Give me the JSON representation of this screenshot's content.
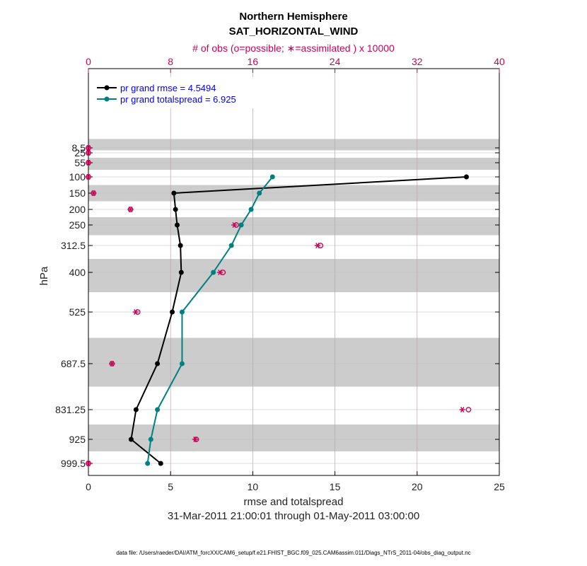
{
  "chart_data": {
    "type": "line",
    "title": "Northern Hemisphere",
    "subtitle": "SAT_HORIZONTAL_WIND",
    "top_axis_label": "# of obs (o=possible; ∗=assimilated ) x 10000",
    "top_ticks": [
      "0",
      "8",
      "16",
      "24",
      "32",
      "40"
    ],
    "top_range": [
      0,
      40
    ],
    "xlabel": "rmse and totalspread",
    "x_ticks": [
      "0",
      "5",
      "10",
      "15",
      "20",
      "25"
    ],
    "xlim": [
      0,
      25
    ],
    "ylabel": "hPa",
    "levels": [
      8.5,
      25,
      55,
      100,
      150,
      200,
      250,
      312.5,
      400,
      525,
      687.5,
      831.25,
      925,
      999.5
    ],
    "level_labels": [
      "8.5",
      "25",
      "55",
      "100",
      "150",
      "200",
      "250",
      "312.5",
      "400",
      "525",
      "687.5",
      "831.25",
      "925",
      "999.5"
    ],
    "series": [
      {
        "name": "pr grand rmse = 4.5494",
        "color": "#000000",
        "levels": [
          100,
          150,
          200,
          250,
          312.5,
          400,
          525,
          687.5,
          831.25,
          925,
          999.5
        ],
        "values": [
          23.0,
          5.2,
          5.3,
          5.4,
          5.6,
          5.65,
          5.1,
          4.2,
          2.9,
          2.6,
          4.4
        ]
      },
      {
        "name": "pr grand totalspread = 6.925",
        "color": "#008080",
        "levels": [
          100,
          150,
          200,
          250,
          312.5,
          400,
          525,
          687.5,
          831.25,
          925,
          999.5
        ],
        "values": [
          11.2,
          10.4,
          9.9,
          9.3,
          8.7,
          7.6,
          5.7,
          5.7,
          4.2,
          3.8,
          3.6
        ]
      }
    ],
    "obs": {
      "color": "#cc0055",
      "levels": [
        8.5,
        25,
        55,
        100,
        150,
        200,
        250,
        312.5,
        400,
        525,
        687.5,
        831.25,
        925,
        999.5
      ],
      "possible": [
        0,
        0,
        0,
        0,
        0.5,
        4.1,
        14.4,
        22.6,
        13.1,
        4.8,
        2.3,
        37.0,
        10.5,
        0
      ],
      "assimilated": [
        0,
        0,
        0,
        0,
        0.5,
        4.1,
        14.2,
        22.3,
        12.8,
        4.6,
        2.3,
        36.4,
        10.4,
        0
      ]
    },
    "legend_position": "top-left",
    "grid": true
  },
  "date_range": "31-Mar-2011 21:00:01 through 01-May-2011 03:00:00",
  "footer": "data file: /Users/raeder/DAI/ATM_forcXX/CAM6_setup/f.e21.FHIST_BGC.f09_025.CAM6assim.011/Diags_NTrS_2011-04/obs_diag_output.nc"
}
